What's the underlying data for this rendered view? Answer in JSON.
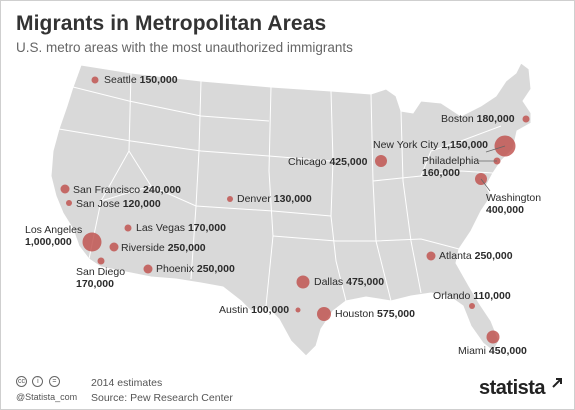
{
  "title": "Migrants in Metropolitan Areas",
  "subtitle": "U.S. metro areas with the most unauthorized immigrants",
  "footer": {
    "note": "2014 estimates",
    "source": "Source: Pew Research Center",
    "credit": "@Statista_com",
    "brand": "statista",
    "license_icons": [
      "cc-icon",
      "attribution-icon",
      "no-derivatives-icon"
    ]
  },
  "colors": {
    "land": "#d9d9d9",
    "border": "#ffffff",
    "marker": "#c0504d"
  },
  "cities": [
    {
      "name": "Seattle",
      "value": "150,000"
    },
    {
      "name": "Boston",
      "value": "180,000"
    },
    {
      "name": "New York City",
      "value": "1,150,000"
    },
    {
      "name": "Philadelphia",
      "value": "160,000"
    },
    {
      "name": "Chicago",
      "value": "425,000"
    },
    {
      "name": "Washington",
      "value": "400,000"
    },
    {
      "name": "San Francisco",
      "value": "240,000"
    },
    {
      "name": "San Jose",
      "value": "120,000"
    },
    {
      "name": "Denver",
      "value": "130,000"
    },
    {
      "name": "Las Vegas",
      "value": "170,000"
    },
    {
      "name": "Los Angeles",
      "value": "1,000,000"
    },
    {
      "name": "Riverside",
      "value": "250,000"
    },
    {
      "name": "San Diego",
      "value": "170,000"
    },
    {
      "name": "Phoenix",
      "value": "250,000"
    },
    {
      "name": "Atlanta",
      "value": "250,000"
    },
    {
      "name": "Dallas",
      "value": "475,000"
    },
    {
      "name": "Orlando",
      "value": "110,000"
    },
    {
      "name": "Austin",
      "value": "100,000"
    },
    {
      "name": "Houston",
      "value": "575,000"
    },
    {
      "name": "Miami",
      "value": "450,000"
    }
  ]
}
